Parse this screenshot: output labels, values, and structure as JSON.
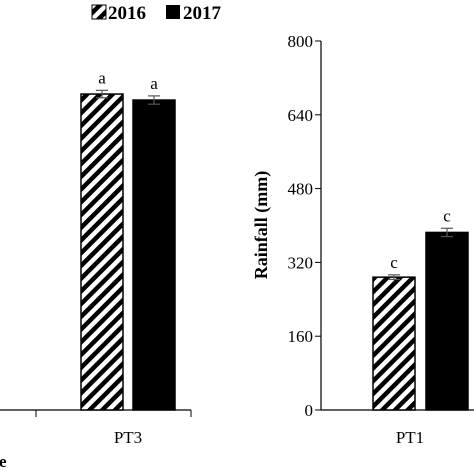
{
  "legend": {
    "position": "top",
    "entries": [
      {
        "name": "2016",
        "fill": "hatched"
      },
      {
        "name": "2017",
        "fill": "solid"
      }
    ]
  },
  "panel_letter": "e",
  "colors": {
    "bar_2017": "#000000",
    "hatch_2016": "#000000",
    "axis": "#000000",
    "background": "#ffffff"
  },
  "chart_data": [
    {
      "type": "bar",
      "title": "",
      "categories": [
        "PT3"
      ],
      "series": [
        {
          "name": "2016",
          "values": [
            685
          ],
          "error": [
            8
          ],
          "significance": [
            "a"
          ]
        },
        {
          "name": "2017",
          "values": [
            672
          ],
          "error": [
            9
          ],
          "significance": [
            "a"
          ]
        }
      ],
      "xlabel": "",
      "ylabel": "",
      "grid": false,
      "note": "left panel, y-axis cropped"
    },
    {
      "type": "bar",
      "title": "",
      "categories": [
        "PT1"
      ],
      "series": [
        {
          "name": "2016",
          "values": [
            288
          ],
          "error": [
            5
          ],
          "significance": [
            "c"
          ]
        },
        {
          "name": "2017",
          "values": [
            385
          ],
          "error": [
            9
          ],
          "significance": [
            "c"
          ]
        }
      ],
      "xlabel": "",
      "ylabel": "Rainfall (mm)",
      "ylim": [
        0,
        800
      ],
      "yticks": [
        "0",
        "160",
        "320",
        "480",
        "640",
        "800"
      ],
      "grid": false
    }
  ]
}
